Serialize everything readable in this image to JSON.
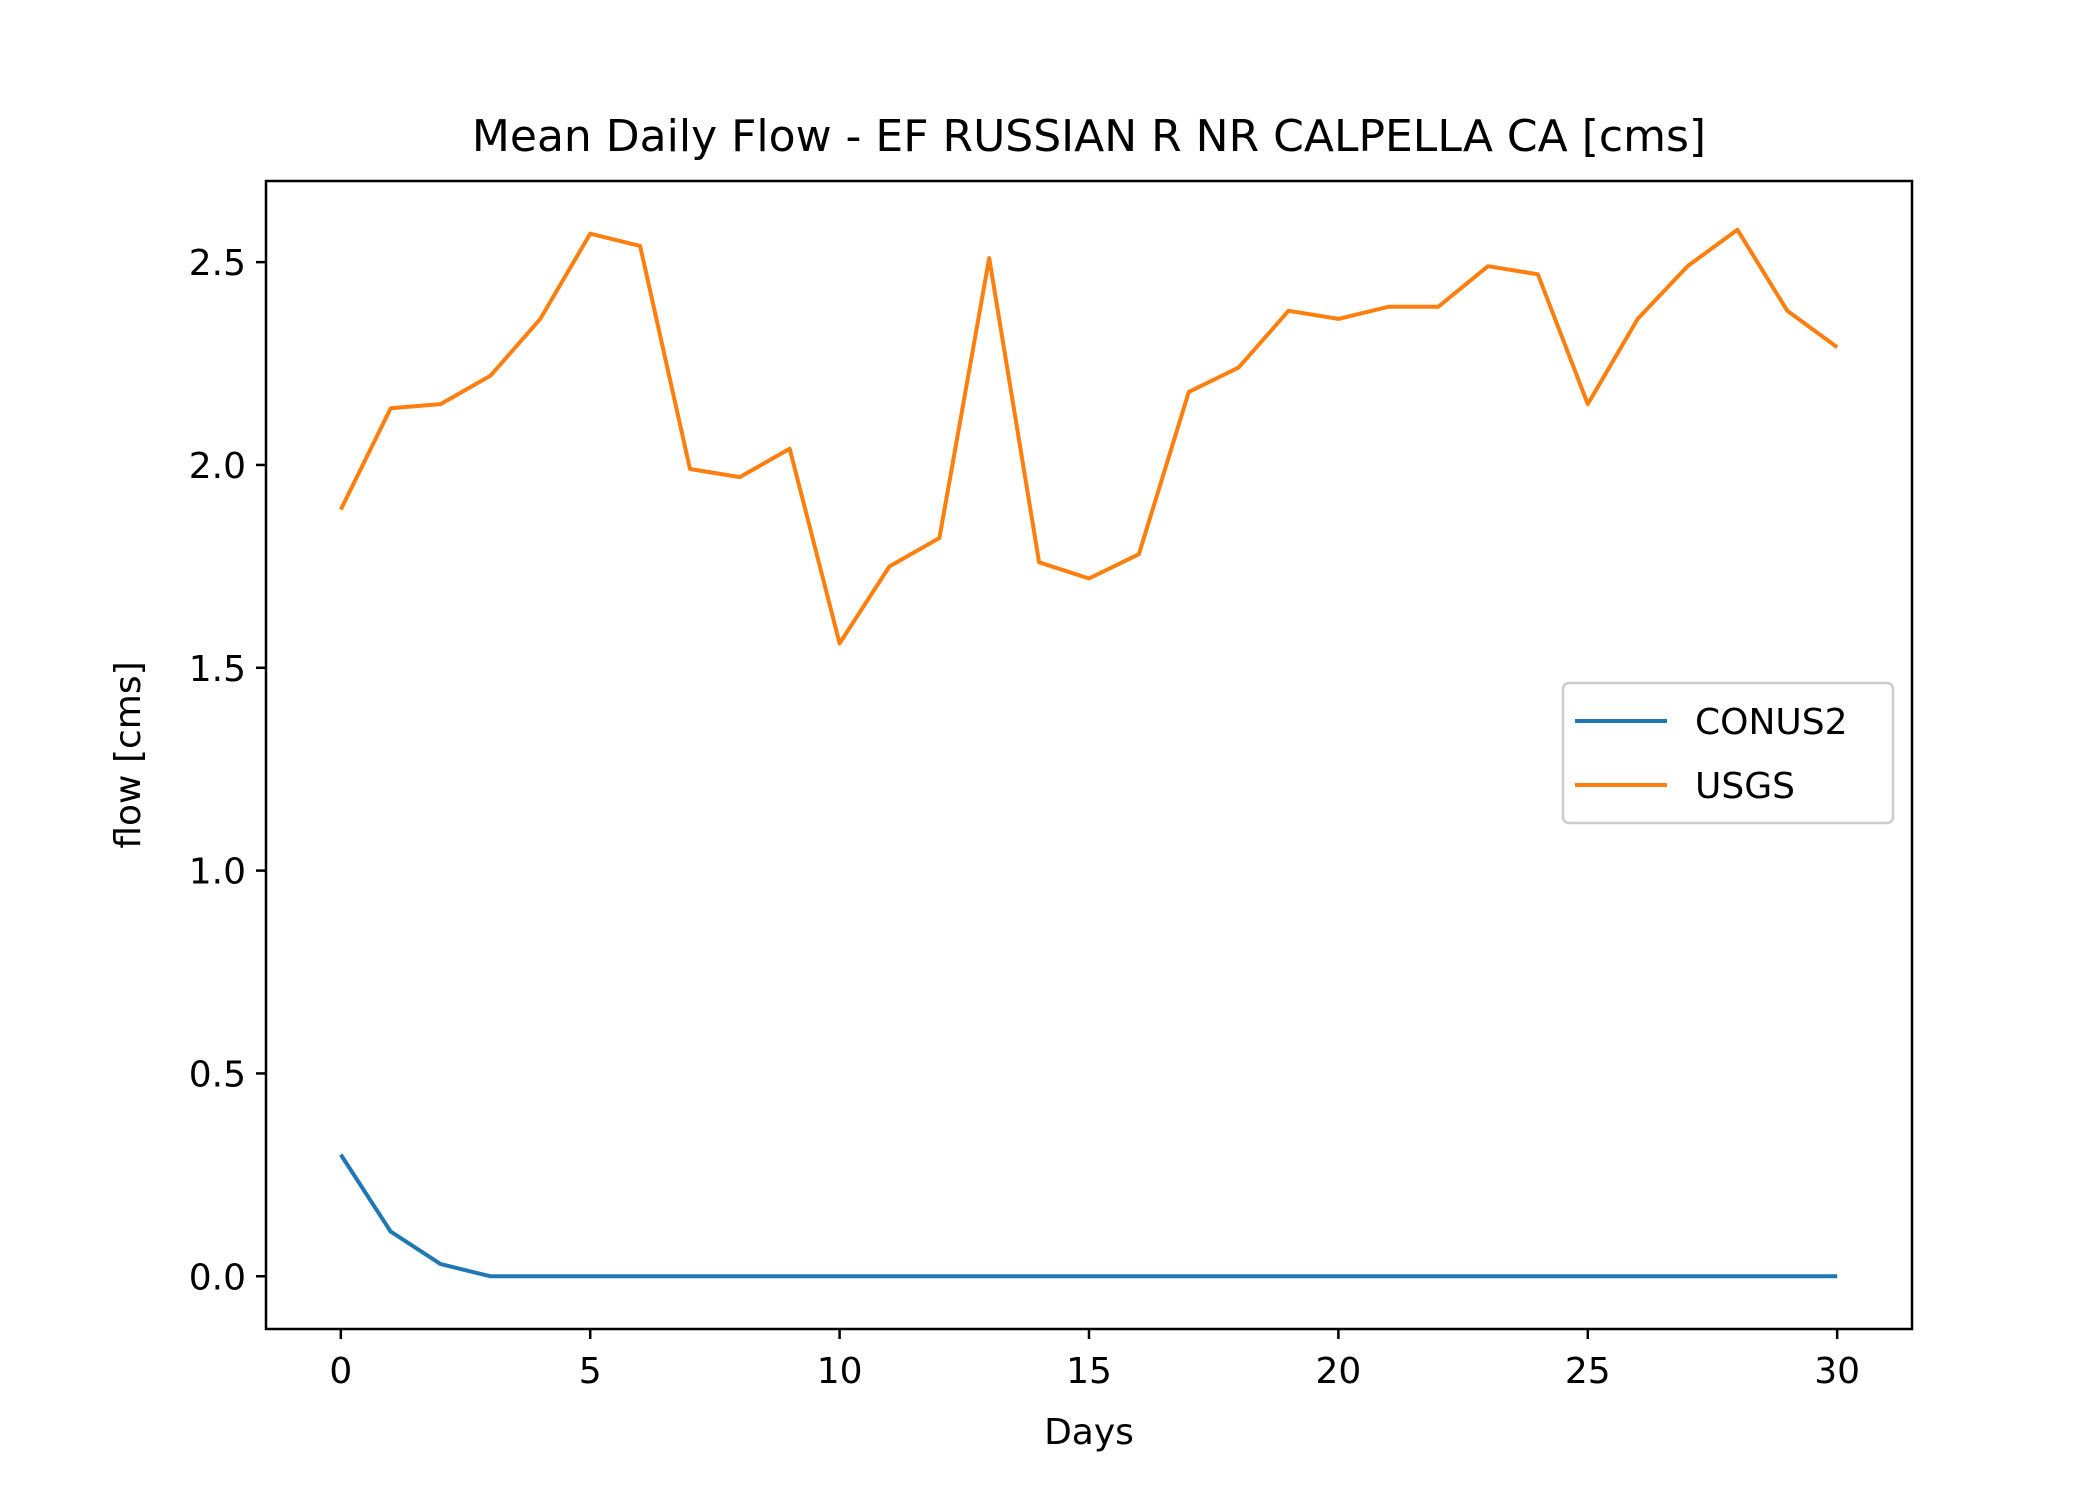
{
  "chart_data": {
    "type": "line",
    "title": "Mean Daily Flow - EF RUSSIAN R NR CALPELLA CA [cms]",
    "xlabel": "Days",
    "ylabel": "flow [cms]",
    "xlim": [
      -1.5,
      31.5
    ],
    "ylim": [
      -0.13,
      2.7
    ],
    "xticks": [
      0,
      5,
      10,
      15,
      20,
      25,
      30
    ],
    "xtick_labels": [
      "0",
      "5",
      "10",
      "15",
      "20",
      "25",
      "30"
    ],
    "yticks": [
      0.0,
      0.5,
      1.0,
      1.5,
      2.0,
      2.5
    ],
    "ytick_labels": [
      "0.0",
      "0.5",
      "1.0",
      "1.5",
      "2.0",
      "2.5"
    ],
    "grid": false,
    "legend": "center-right",
    "x": [
      0,
      1,
      2,
      3,
      4,
      5,
      6,
      7,
      8,
      9,
      10,
      11,
      12,
      13,
      14,
      15,
      16,
      17,
      18,
      19,
      20,
      21,
      22,
      23,
      24,
      25,
      26,
      27,
      28,
      29,
      30
    ],
    "series": [
      {
        "name": "CONUS2",
        "color": "#1f77b4",
        "values": [
          0.3,
          0.11,
          0.03,
          0.0,
          0.0,
          0.0,
          0.0,
          0.0,
          0.0,
          0.0,
          0.0,
          0.0,
          0.0,
          0.0,
          0.0,
          0.0,
          0.0,
          0.0,
          0.0,
          0.0,
          0.0,
          0.0,
          0.0,
          0.0,
          0.0,
          0.0,
          0.0,
          0.0,
          0.0,
          0.0,
          0.0
        ]
      },
      {
        "name": "USGS",
        "color": "#ff7f0e",
        "values": [
          1.89,
          2.14,
          2.15,
          2.22,
          2.36,
          2.57,
          2.54,
          1.99,
          1.97,
          2.04,
          1.56,
          1.75,
          1.82,
          2.51,
          1.76,
          1.72,
          1.78,
          2.18,
          2.24,
          2.38,
          2.36,
          2.39,
          2.39,
          2.49,
          2.47,
          2.15,
          2.36,
          2.49,
          2.58,
          2.38,
          2.29
        ]
      }
    ]
  }
}
